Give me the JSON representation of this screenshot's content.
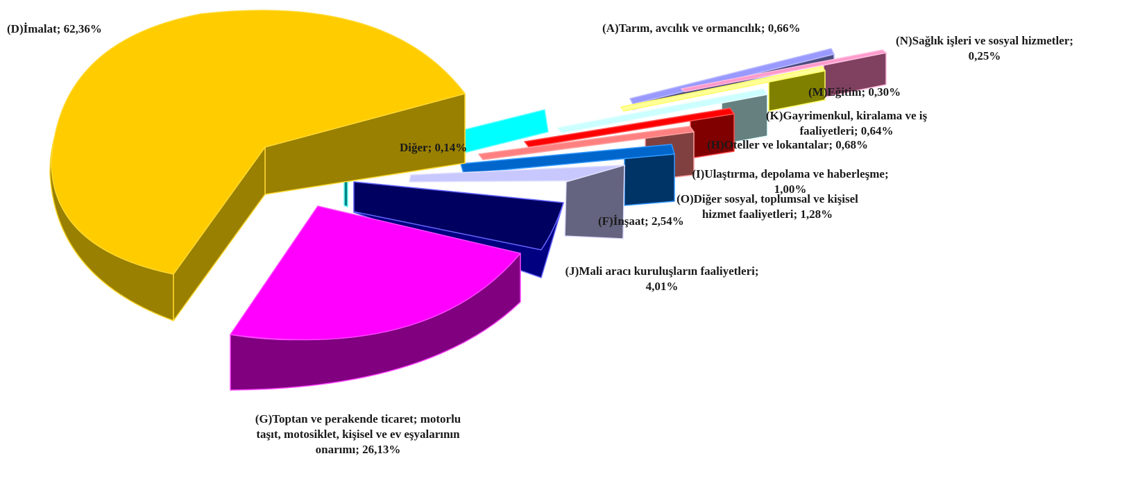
{
  "chart_data": {
    "type": "pie",
    "style": "3d-exploded",
    "slices": [
      {
        "key": "D",
        "label_lines": [
          "(D)İmalat; 62,36%"
        ],
        "value": 62.36,
        "top": "#ffcc00",
        "side": "#998000",
        "edge": "#ffd830"
      },
      {
        "key": "G",
        "label_lines": [
          "(G)Toptan ve perakende ticaret; motorlu",
          "taşıt, motosiklet, kişisel ve ev eşyalarının",
          "onarımı; 26,13%"
        ],
        "value": 26.13,
        "top": "#ff00ff",
        "side": "#800080",
        "edge": "#ff44ff"
      },
      {
        "key": "J",
        "label_lines": [
          "(J)Mali aracı kuruluşların faaliyetleri;",
          "4,01%"
        ],
        "value": 4.01,
        "top": "#000060",
        "side": "#000080",
        "edge": "#6666ff"
      },
      {
        "key": "F",
        "label_lines": [
          "(F)İnşaat; 2,54%"
        ],
        "value": 2.54,
        "top": "#c8c8ff",
        "side": "#646480",
        "edge": "#e0e0ff"
      },
      {
        "key": "O",
        "label_lines": [
          "(O)Diğer sosyal, toplumsal ve kişisel",
          "hizmet faaliyetleri; 1,28%"
        ],
        "value": 1.28,
        "top": "#0066cc",
        "side": "#003366",
        "edge": "#3399ff"
      },
      {
        "key": "I",
        "label_lines": [
          "(I)Ulaştırma, depolama ve haberleşme;",
          "1,00%"
        ],
        "value": 1.0,
        "top": "#ff8080",
        "side": "#804040",
        "edge": "#ffa0a0"
      },
      {
        "key": "H",
        "label_lines": [
          "(H)Oteller ve lokantalar; 0,68%"
        ],
        "value": 0.68,
        "top": "#ff0000",
        "side": "#800000",
        "edge": "#ff5050"
      },
      {
        "key": "K",
        "label_lines": [
          "(K)Gayrimenkul, kiralama ve iş",
          "faaliyetleri; 0,64%"
        ],
        "value": 0.64,
        "top": "#ccffff",
        "side": "#668080",
        "edge": "#e6ffff"
      },
      {
        "key": "M",
        "label_lines": [
          "(M)Eğitim; 0,30%"
        ],
        "value": 0.3,
        "top": "#ffff99",
        "side": "#808000",
        "edge": "#ffff66"
      },
      {
        "key": "N",
        "label_lines": [
          "(N)Sağlık işleri ve sosyal hizmetler;",
          "0,25%"
        ],
        "value": 0.25,
        "top": "#ff99cc",
        "side": "#804060",
        "edge": "#ffbbdd"
      },
      {
        "key": "A",
        "label_lines": [
          "(A)Tarım, avcılık ve ormancılık; 0,66%"
        ],
        "value": 0.66,
        "top": "#9999ff",
        "side": "#4d4d80",
        "edge": "#bbbbff"
      },
      {
        "key": "Other",
        "label_lines": [
          "Diğer; 0,14%"
        ],
        "value": 0.14,
        "top": "#00ffff",
        "side": "#008080",
        "edge": "#66ffff"
      }
    ]
  }
}
